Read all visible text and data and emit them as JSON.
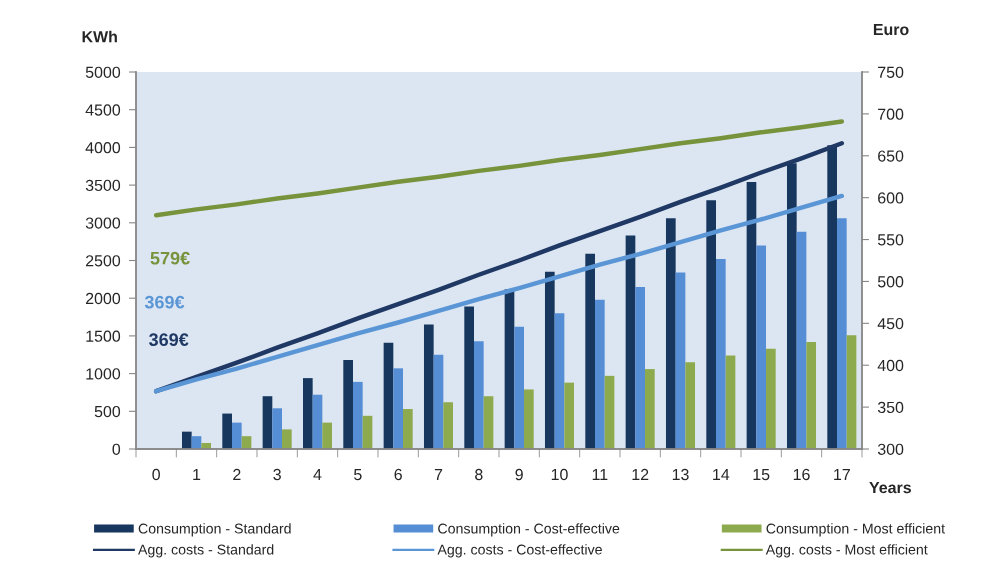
{
  "chart_data": {
    "type": "bar",
    "categories": [
      "0",
      "1",
      "2",
      "3",
      "4",
      "5",
      "6",
      "7",
      "8",
      "9",
      "10",
      "11",
      "12",
      "13",
      "14",
      "15",
      "16",
      "17"
    ],
    "xlabel": "Years",
    "ylabel": "KWh",
    "y2label": "Euro",
    "ylim": [
      0,
      5000
    ],
    "yticks": [
      0,
      500,
      1000,
      1500,
      2000,
      2500,
      3000,
      3500,
      4000,
      4500,
      5000
    ],
    "y2lim": [
      300,
      750
    ],
    "y2ticks": [
      300,
      350,
      400,
      450,
      500,
      550,
      600,
      650,
      700,
      750
    ],
    "series": [
      {
        "name": "Consumption - Standard",
        "color": "#17375e",
        "values": [
          null,
          230,
          470,
          700,
          940,
          1180,
          1410,
          1650,
          1890,
          2120,
          2350,
          2590,
          2830,
          3060,
          3300,
          3540,
          3790,
          4030
        ]
      },
      {
        "name": "Consumption - Cost-effective",
        "color": "#558ed5",
        "values": [
          null,
          170,
          350,
          540,
          720,
          890,
          1070,
          1250,
          1430,
          1620,
          1800,
          1980,
          2150,
          2340,
          2520,
          2700,
          2880,
          3060
        ]
      },
      {
        "name": "Consumption - Most efficient",
        "color": "#8eaa4e",
        "values": [
          null,
          80,
          170,
          260,
          350,
          440,
          530,
          620,
          700,
          790,
          880,
          970,
          1060,
          1150,
          1240,
          1330,
          1420,
          1510
        ]
      },
      {
        "type": "line",
        "axis": "y2",
        "name": "Agg. costs - Standard",
        "color": "#1f3864",
        "values": [
          369,
          386,
          403,
          421,
          438,
          456,
          473,
          490,
          508,
          525,
          543,
          560,
          577,
          595,
          612,
          630,
          647,
          665
        ]
      },
      {
        "type": "line",
        "axis": "y2",
        "name": "Agg. costs - Cost-effective",
        "color": "#5a96d6",
        "values": [
          369,
          383,
          396,
          410,
          424,
          438,
          451,
          465,
          479,
          492,
          506,
          520,
          533,
          547,
          561,
          574,
          588,
          602
        ]
      },
      {
        "type": "line",
        "axis": "y2",
        "name": "Agg. costs - Most efficient",
        "color": "#77933c",
        "values": [
          579,
          586,
          592,
          599,
          605,
          612,
          619,
          625,
          632,
          638,
          645,
          651,
          658,
          665,
          671,
          678,
          684,
          691
        ]
      }
    ],
    "annotations": [
      "579€",
      "369€",
      "369€"
    ],
    "legend": "bottom"
  }
}
